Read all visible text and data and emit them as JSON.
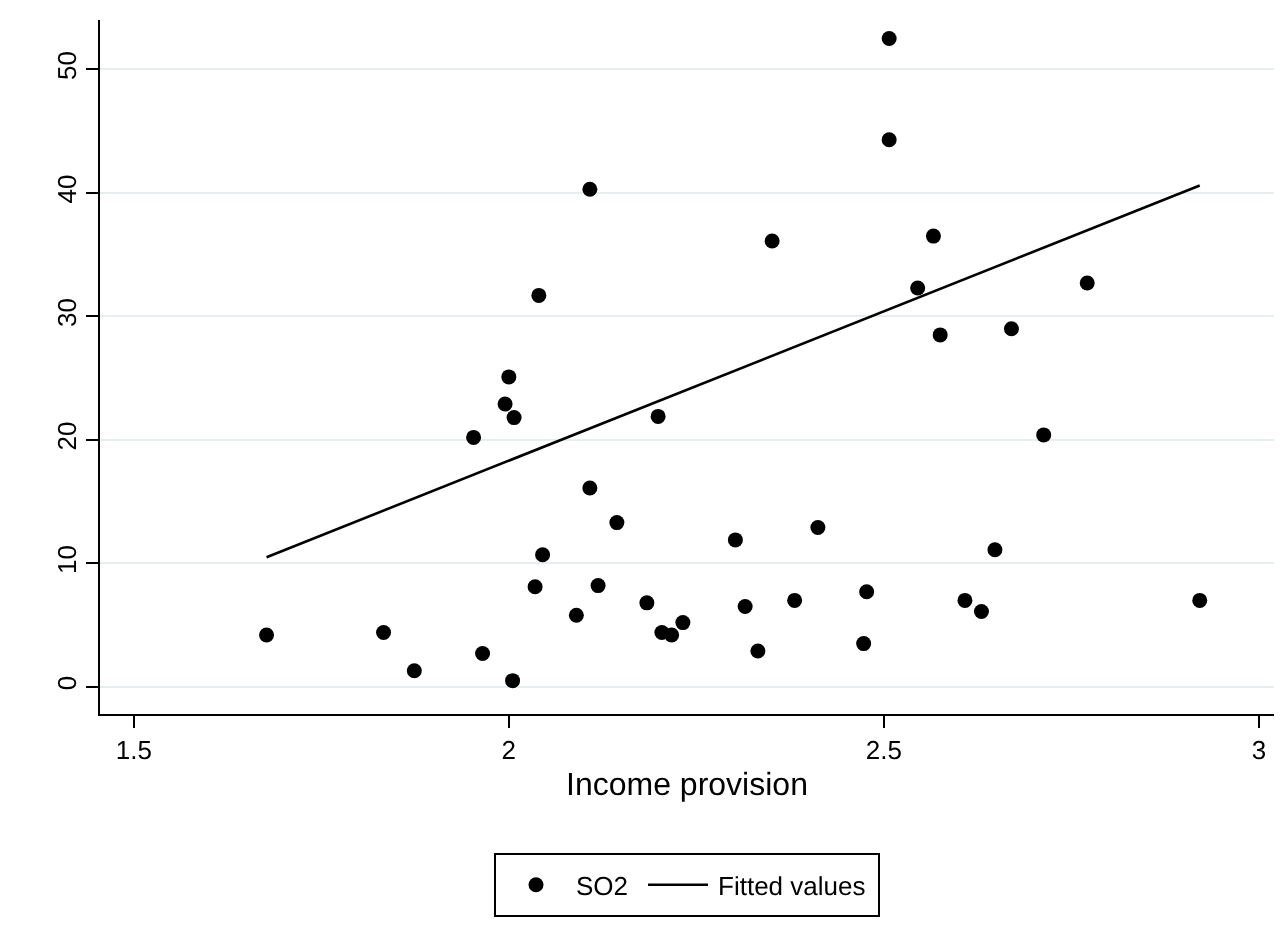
{
  "chart_data": {
    "type": "scatter",
    "xlabel": "Income provision",
    "xlim": [
      1.455,
      3.02
    ],
    "xticks": [
      {
        "value": 1.5,
        "label": "1.5"
      },
      2,
      {
        "value": 2.5,
        "label": "2.5"
      },
      3
    ],
    "ylim": [
      -2.2,
      54
    ],
    "yticks": [
      0,
      10,
      20,
      30,
      40,
      50
    ],
    "grid": "y",
    "legend": "bottom",
    "series": [
      {
        "name": "SO2",
        "marker": "circle",
        "color": "#000000",
        "x": [
          1.677,
          1.833,
          1.874,
          1.965,
          2.005,
          1.953,
          1.995,
          2.0,
          2.007,
          2.04,
          2.108,
          2.108,
          2.144,
          2.045,
          2.035,
          2.119,
          2.09,
          2.184,
          2.199,
          2.204,
          2.217,
          2.232,
          2.302,
          2.315,
          2.332,
          2.351,
          2.381,
          2.412,
          2.477,
          2.473,
          2.507,
          2.507,
          2.566,
          2.545,
          2.575,
          2.608,
          2.63,
          2.648,
          2.67,
          2.713,
          2.771,
          2.921
        ],
        "values": [
          4.2,
          4.4,
          1.3,
          2.7,
          0.5,
          20.2,
          22.9,
          25.1,
          21.8,
          31.7,
          40.3,
          16.1,
          13.3,
          10.7,
          8.1,
          8.2,
          5.8,
          6.8,
          21.9,
          4.4,
          4.2,
          5.2,
          11.9,
          6.5,
          2.9,
          36.1,
          7.0,
          12.9,
          7.7,
          3.5,
          52.5,
          44.3,
          36.5,
          32.3,
          28.5,
          7.0,
          6.1,
          11.1,
          29.0,
          20.4,
          32.7,
          7.0
        ]
      },
      {
        "name": "Fitted values",
        "type": "line",
        "color": "#000000",
        "line_style": "solid",
        "x": [
          1.677,
          2.921
        ],
        "values": [
          10.5,
          40.6
        ]
      }
    ]
  }
}
